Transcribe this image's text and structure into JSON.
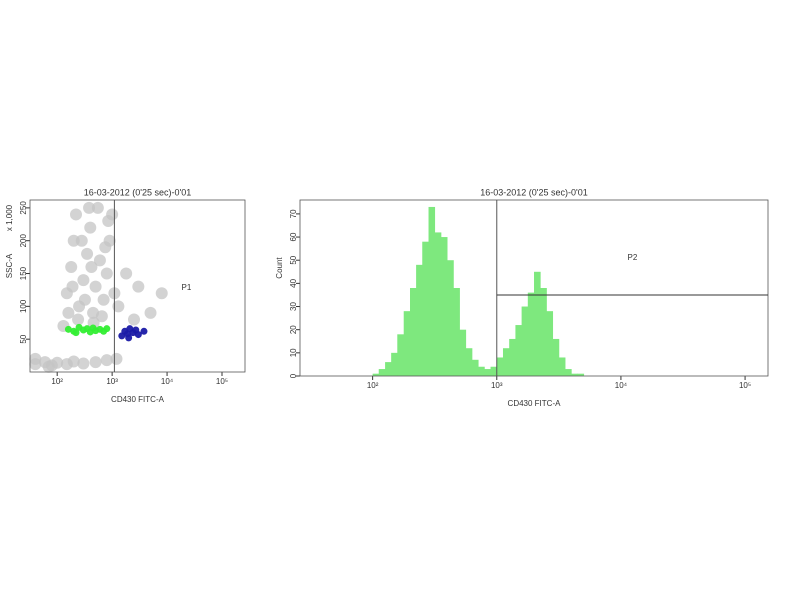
{
  "chart_data": [
    {
      "type": "scatter",
      "title": "16-03-2012 (0'25 sec)-0'01",
      "x_label": "CD430 FITC-A",
      "y_label": "SSC-A",
      "y_unit": "x 1,000",
      "xscale": "log",
      "xlim": [
        32,
        262144
      ],
      "ylim": [
        0,
        262
      ],
      "xticks": [
        {
          "value": 100,
          "label": "10²"
        },
        {
          "value": 1000,
          "label": "10³"
        },
        {
          "value": 10000,
          "label": "10⁴"
        },
        {
          "value": 100000,
          "label": "10⁵"
        }
      ],
      "yticks": [
        50,
        100,
        150,
        200,
        250
      ],
      "series": [
        {
          "color": "#c4c4c4",
          "x": [
            130,
            150,
            180,
            200,
            220,
            250,
            300,
            350,
            400,
            450,
            500,
            600,
            700,
            800,
            900,
            1000,
            160,
            240,
            320,
            420,
            550,
            650,
            750,
            1100,
            1300,
            1800,
            3000,
            5000,
            8000,
            2500,
            190,
            280,
            380,
            850,
            460,
            40,
            60,
            80,
            100,
            150,
            200,
            300,
            500,
            800,
            1200,
            40,
            70
          ],
          "y": [
            70,
            120,
            160,
            200,
            240,
            100,
            140,
            180,
            220,
            90,
            130,
            170,
            110,
            150,
            200,
            240,
            90,
            80,
            110,
            160,
            250,
            85,
            190,
            120,
            100,
            150,
            130,
            90,
            120,
            80,
            130,
            200,
            250,
            230,
            75,
            12,
            15,
            10,
            14,
            12,
            16,
            13,
            15,
            18,
            20,
            20,
            8
          ]
        },
        {
          "color": "#33ee33",
          "x": [
            160,
            200,
            250,
            300,
            350,
            400,
            450,
            500,
            600,
            700,
            800,
            220
          ],
          "y": [
            65,
            62,
            68,
            64,
            66,
            61,
            67,
            63,
            65,
            62,
            66,
            60
          ]
        },
        {
          "color": "#1a1aa6",
          "x": [
            1500,
            1700,
            1900,
            2100,
            2400,
            2700,
            3000,
            2000,
            3800
          ],
          "y": [
            55,
            62,
            58,
            66,
            60,
            64,
            57,
            52,
            62
          ]
        }
      ],
      "gate": {
        "label": "P1",
        "x": 1100
      }
    },
    {
      "type": "histogram",
      "title": "16-03-2012 (0'25 sec)-0'01",
      "x_label": "CD430 FITC-A",
      "y_label": "Count",
      "xscale": "log",
      "xlim": [
        26,
        153000
      ],
      "ylim": [
        0,
        76
      ],
      "color": "#7ee87e",
      "xticks": [
        {
          "value": 100,
          "label": "10²"
        },
        {
          "value": 1000,
          "label": "10³"
        },
        {
          "value": 10000,
          "label": "10⁴"
        },
        {
          "value": 100000,
          "label": "10⁵"
        }
      ],
      "yticks": [
        0,
        10,
        20,
        30,
        40,
        50,
        60,
        70
      ],
      "bins": [
        100,
        112,
        126,
        141,
        158,
        178,
        200,
        224,
        251,
        282,
        316,
        355,
        398,
        447,
        501,
        562,
        631,
        708,
        794,
        891,
        1000,
        1122,
        1259,
        1413,
        1585,
        1778,
        1995,
        2239,
        2512,
        2818,
        3162,
        3548,
        3981,
        4467,
        5012,
        5623,
        6310
      ],
      "counts": [
        1,
        3,
        6,
        10,
        18,
        28,
        38,
        48,
        58,
        73,
        62,
        60,
        50,
        38,
        20,
        12,
        7,
        4,
        3,
        4,
        8,
        12,
        16,
        22,
        30,
        36,
        45,
        38,
        28,
        16,
        8,
        3,
        1,
        1,
        0,
        0
      ],
      "gate": {
        "label": "P2",
        "x": 1000,
        "y": 35
      }
    }
  ]
}
